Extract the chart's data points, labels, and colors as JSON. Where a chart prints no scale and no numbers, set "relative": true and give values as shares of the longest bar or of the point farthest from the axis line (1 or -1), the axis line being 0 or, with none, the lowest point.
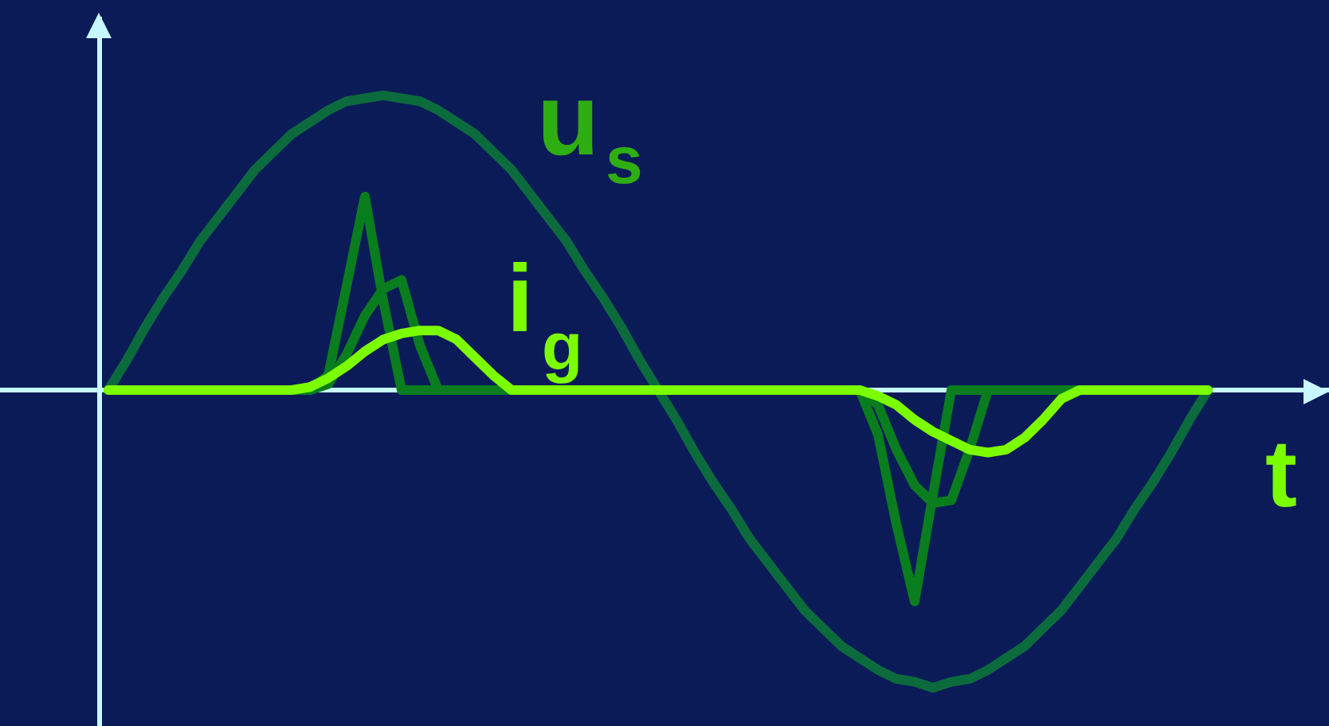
{
  "chart_data": {
    "type": "line",
    "relative": true,
    "xlabel": "t",
    "ref_lines": [
      {
        "axis": "y",
        "value": 0,
        "color": "#c8f8ff"
      }
    ],
    "categories": [
      null,
      null,
      null,
      null,
      null,
      null,
      null,
      null,
      null,
      null,
      null,
      null,
      null,
      null,
      null,
      null,
      null,
      null,
      null,
      null,
      null,
      null,
      null,
      null,
      null,
      null,
      null,
      null,
      null,
      null,
      null,
      null,
      null,
      null,
      null,
      null,
      null,
      null,
      null,
      null,
      null,
      null,
      null,
      null,
      null,
      null,
      null,
      null,
      null,
      null,
      null,
      null,
      null,
      null,
      null,
      null,
      null,
      null,
      null,
      null,
      null
    ],
    "series": [
      {
        "name": "u$_{s}$",
        "color": "#0c6b3c",
        "values": [
          0,
          0.1,
          0.21,
          0.31,
          0.4,
          0.5,
          0.58,
          0.66,
          0.74,
          0.8,
          0.86,
          0.9,
          0.94,
          0.97,
          0.98,
          0.99,
          0.98,
          0.97,
          0.94,
          0.9,
          0.86,
          0.8,
          0.74,
          0.66,
          0.58,
          0.5,
          0.4,
          0.31,
          0.21,
          0.1,
          0,
          -0.1,
          -0.21,
          -0.31,
          -0.4,
          -0.5,
          -0.58,
          -0.66,
          -0.74,
          -0.8,
          -0.86,
          -0.9,
          -0.94,
          -0.97,
          -0.98,
          -1,
          -0.98,
          -0.97,
          -0.94,
          -0.9,
          -0.86,
          -0.8,
          -0.74,
          -0.66,
          -0.58,
          -0.5,
          -0.4,
          -0.31,
          -0.21,
          -0.1,
          0
        ]
      },
      {
        "color": "#0a7d1e",
        "values": [
          0,
          0,
          0,
          0,
          0,
          0,
          0,
          0,
          0,
          0,
          0,
          0,
          0.05,
          0.35,
          0.65,
          0.3,
          0,
          0,
          0,
          0,
          0,
          0,
          0,
          0,
          0,
          0,
          0,
          0,
          0,
          0,
          0,
          0,
          0,
          0,
          0,
          0,
          0,
          0,
          0,
          0,
          0,
          0,
          -0.15,
          -0.45,
          -0.71,
          -0.35,
          0,
          0,
          0,
          0,
          0,
          0,
          0,
          0,
          0,
          0,
          0,
          0,
          0,
          0,
          0
        ]
      },
      {
        "color": "#0a7d1e",
        "values": [
          0,
          0,
          0,
          0,
          0,
          0,
          0,
          0,
          0,
          0,
          0,
          0,
          0.02,
          0.12,
          0.25,
          0.34,
          0.37,
          0.15,
          0,
          0,
          0,
          0,
          0,
          0,
          0,
          0,
          0,
          0,
          0,
          0,
          0,
          0,
          0,
          0,
          0,
          0,
          0,
          0,
          0,
          0,
          0,
          0,
          -0.05,
          -0.2,
          -0.32,
          -0.38,
          -0.37,
          -0.2,
          0,
          0,
          0,
          0,
          0,
          0,
          0,
          0,
          0,
          0,
          0,
          0,
          0
        ]
      },
      {
        "name": "i$_{g}$",
        "color": "#7cfc00",
        "values": [
          0,
          0,
          0,
          0,
          0,
          0,
          0,
          0,
          0,
          0,
          0,
          0.01,
          0.04,
          0.08,
          0.13,
          0.17,
          0.19,
          0.2,
          0.2,
          0.17,
          0.11,
          0.05,
          0,
          0,
          0,
          0,
          0,
          0,
          0,
          0,
          0,
          0,
          0,
          0,
          0,
          0,
          0,
          0,
          0,
          0,
          0,
          0,
          -0.02,
          -0.05,
          -0.1,
          -0.14,
          -0.17,
          -0.2,
          -0.21,
          -0.2,
          -0.16,
          -0.1,
          -0.03,
          0,
          0,
          0,
          0,
          0,
          0,
          0,
          0
        ]
      }
    ]
  }
}
